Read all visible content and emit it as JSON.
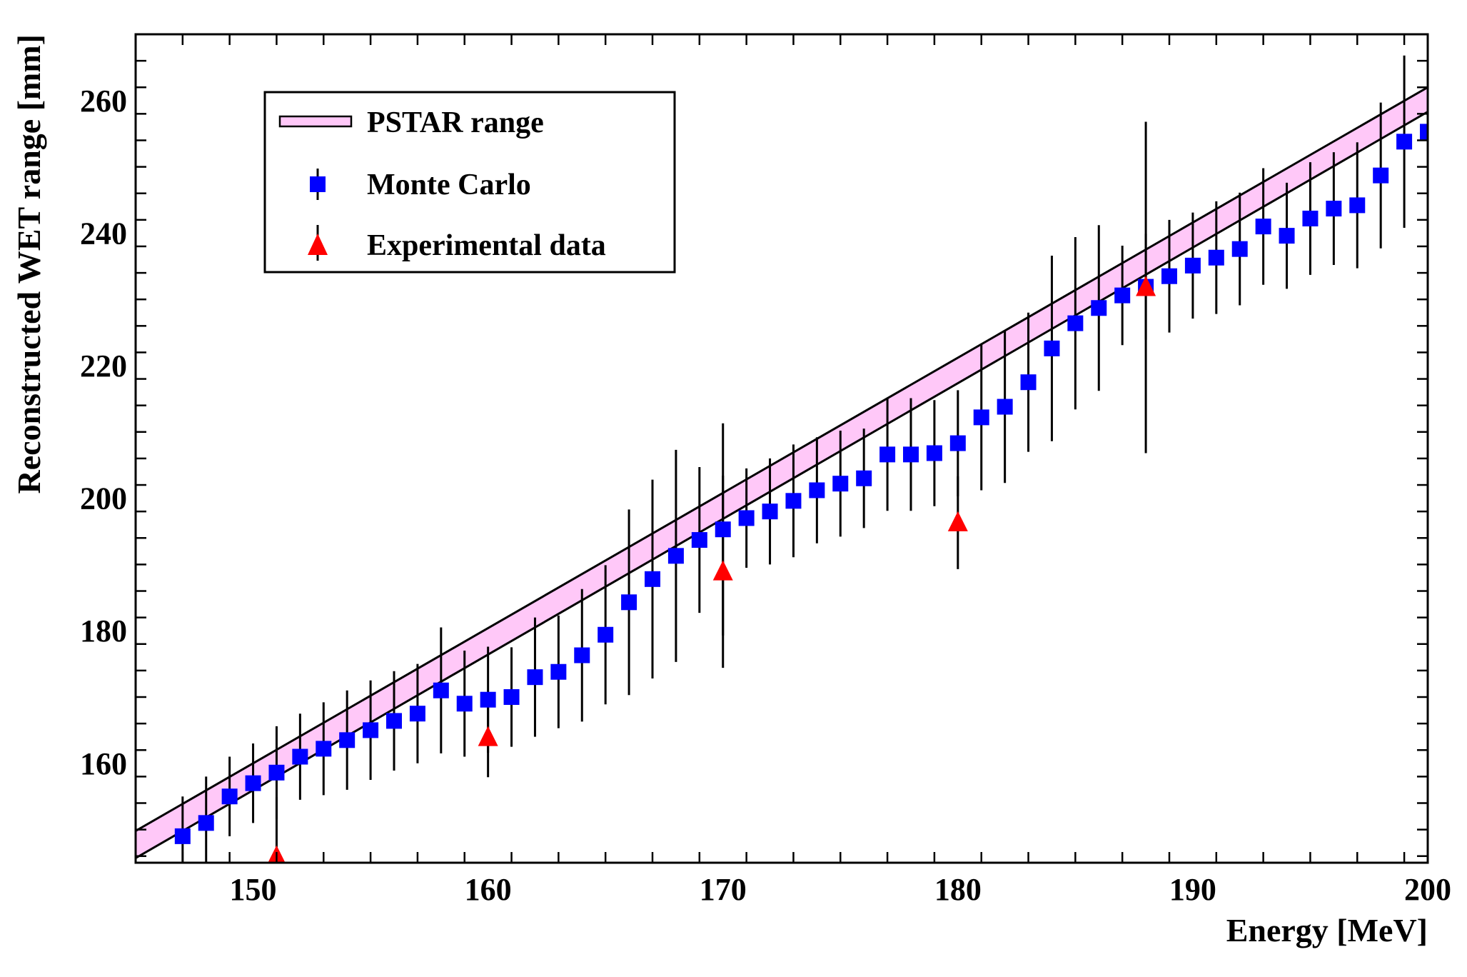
{
  "chart_data": {
    "type": "scatter",
    "title": "",
    "xlabel": "Energy [MeV]",
    "ylabel": "Reconstructed WET range [mm]",
    "xlim": [
      145,
      200
    ],
    "ylim": [
      145,
      270
    ],
    "xticks": [
      150,
      160,
      170,
      180,
      190,
      200
    ],
    "yticks": [
      160,
      180,
      200,
      220,
      240,
      260
    ],
    "legend": {
      "position": "top-left",
      "entries": [
        "PSTAR range",
        "Monte Carlo",
        "Experimental data"
      ]
    },
    "band": {
      "name": "PSTAR range",
      "color": "#ffc8f8",
      "x": [
        145,
        200
      ],
      "lower": [
        145.7,
        258.3
      ],
      "upper": [
        149.8,
        262.0
      ]
    },
    "series": [
      {
        "name": "Monte Carlo",
        "marker": "square",
        "color": "#0000ff",
        "x": [
          147,
          148,
          149,
          150,
          151,
          152,
          153,
          154,
          155,
          156,
          157,
          158,
          159,
          160,
          161,
          162,
          163,
          164,
          165,
          166,
          167,
          168,
          169,
          170,
          171,
          172,
          173,
          174,
          175,
          176,
          177,
          178,
          179,
          180,
          181,
          182,
          183,
          184,
          185,
          186,
          187,
          188,
          189,
          190,
          191,
          192,
          193,
          194,
          195,
          196,
          197,
          198,
          199,
          200
        ],
        "y": [
          149.0,
          151.0,
          155.0,
          157.0,
          158.6,
          161.0,
          162.2,
          163.5,
          165.0,
          166.4,
          167.5,
          171.0,
          169.0,
          169.6,
          170.0,
          173.0,
          173.8,
          176.3,
          179.4,
          184.3,
          187.8,
          191.3,
          193.7,
          195.3,
          197.0,
          198.0,
          199.6,
          201.2,
          202.2,
          203.0,
          206.6,
          206.6,
          206.8,
          208.3,
          212.2,
          213.8,
          217.5,
          222.6,
          226.4,
          228.7,
          230.6,
          231.9,
          233.5,
          235.1,
          236.3,
          237.6,
          241.0,
          239.6,
          242.2,
          243.7,
          244.2,
          248.7,
          253.8,
          255.3
        ],
        "err": [
          6,
          7,
          6,
          6,
          7,
          6.5,
          7,
          7.5,
          7.5,
          7.5,
          7.5,
          9.5,
          8,
          8,
          7.5,
          9,
          8.5,
          10,
          10.5,
          14,
          15,
          16,
          11,
          16,
          7.5,
          8,
          8.5,
          8,
          8,
          7.5,
          8.5,
          8.5,
          8,
          8,
          11,
          11.5,
          10.5,
          14,
          13,
          12.5,
          7.5,
          8,
          8.5,
          8,
          8.5,
          8.5,
          8.8,
          8,
          8.5,
          8.5,
          9.5,
          11,
          13,
          12.5
        ]
      },
      {
        "name": "Experimental data",
        "marker": "triangle",
        "color": "#ff0000",
        "x": [
          151,
          160,
          170,
          180,
          188
        ],
        "y": [
          145.9,
          163.9,
          188.9,
          196.3,
          231.8
        ],
        "err": [
          9,
          6,
          14.5,
          7,
          25
        ]
      }
    ]
  }
}
